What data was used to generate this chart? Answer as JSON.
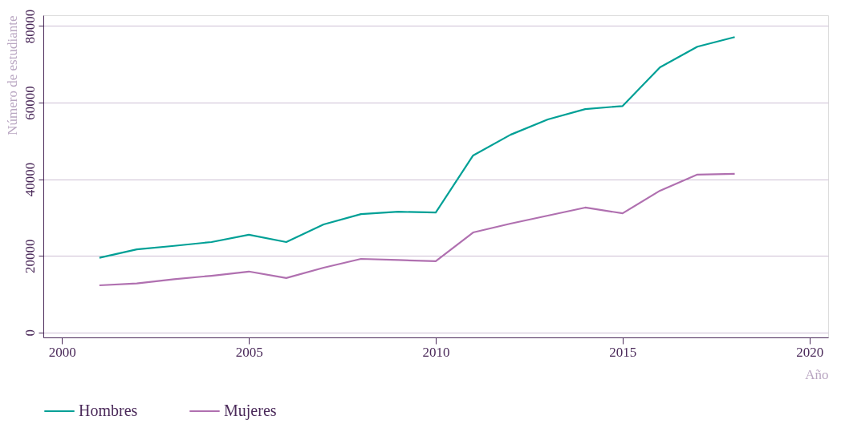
{
  "chart_data": {
    "type": "line",
    "xlabel": "Año",
    "ylabel": "Número de estudiante",
    "x": [
      2001,
      2002,
      2003,
      2004,
      2005,
      2006,
      2007,
      2008,
      2009,
      2010,
      2011,
      2012,
      2013,
      2014,
      2015,
      2016,
      2017,
      2018
    ],
    "series": [
      {
        "name": "Hombres",
        "color": "#00a096",
        "values": [
          19500,
          21700,
          22600,
          23600,
          25500,
          23600,
          28200,
          30900,
          31500,
          31300,
          46200,
          51600,
          55600,
          58300,
          59100,
          69200,
          74600,
          77100
        ]
      },
      {
        "name": "Mujeres",
        "color": "#b070b0",
        "values": [
          12300,
          12800,
          13900,
          14800,
          15900,
          14200,
          16900,
          19200,
          18900,
          18600,
          26100,
          28400,
          30500,
          32600,
          31100,
          37000,
          41200,
          41400
        ]
      }
    ],
    "xlim": [
      1999.5,
      2020.5
    ],
    "xticks": [
      2000,
      2005,
      2010,
      2015,
      2020
    ],
    "ylim": [
      -1300,
      82800
    ],
    "yticks": [
      0,
      20000,
      40000,
      60000,
      80000
    ],
    "grid": "y",
    "legend": "bottom",
    "marker": "none",
    "line_style": "solid"
  }
}
